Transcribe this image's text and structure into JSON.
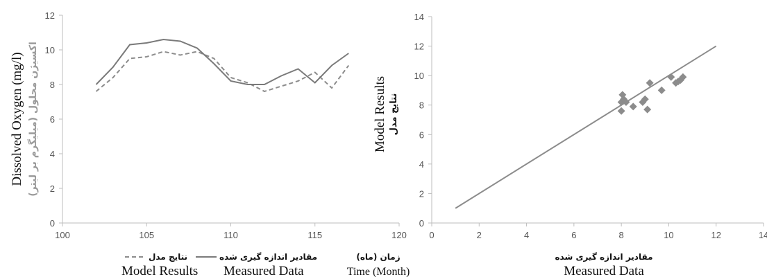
{
  "chart_data": [
    {
      "type": "line",
      "title": "",
      "ylabel": "Dissolved Oxygen (mg/l)",
      "ylabel_fa": "اکسیژن محلول (میلیگرم بر لیتر)",
      "xlabel": "Time (Month)",
      "xlabel_fa": "زمان (ماه)",
      "xlim": [
        100,
        120
      ],
      "ylim": [
        0,
        12
      ],
      "xticks": [
        100,
        105,
        110,
        115,
        120
      ],
      "yticks": [
        0,
        2,
        4,
        6,
        8,
        10,
        12
      ],
      "grid": false,
      "legend_position": "bottom",
      "x": [
        102,
        103,
        104,
        105,
        106,
        107,
        108,
        109,
        110,
        111,
        112,
        113,
        114,
        115,
        116,
        117
      ],
      "series": [
        {
          "name": "Model Results",
          "name_fa": "نتایج مدل",
          "style": "dashed",
          "color": "#8c8c8c",
          "values": [
            7.6,
            8.4,
            9.5,
            9.6,
            9.9,
            9.7,
            9.9,
            9.5,
            8.4,
            8.1,
            7.6,
            7.9,
            8.2,
            8.7,
            7.8,
            9.1
          ]
        },
        {
          "name": "Measured Data",
          "name_fa": "مقادیر اندازه گیری شده",
          "style": "solid",
          "color": "#7a7a7a",
          "values": [
            8.0,
            9.0,
            10.3,
            10.4,
            10.6,
            10.5,
            10.1,
            9.2,
            8.2,
            8.0,
            8.0,
            8.5,
            8.9,
            8.1,
            9.1,
            9.8
          ]
        }
      ]
    },
    {
      "type": "scatter",
      "title": "",
      "xlabel": "Measured Data",
      "xlabel_fa": "مقادیر اندازه گیری شده",
      "ylabel": "Model Results",
      "ylabel_fa": "نتایج مدل",
      "xlim": [
        0,
        14
      ],
      "ylim": [
        0,
        14
      ],
      "xticks": [
        0,
        2,
        4,
        6,
        8,
        10,
        12,
        14
      ],
      "yticks": [
        0,
        2,
        4,
        6,
        8,
        10,
        12,
        14
      ],
      "grid": false,
      "marker": "diamond",
      "marker_color": "#8c8c8c",
      "points": [
        {
          "x": 8.0,
          "y": 7.6
        },
        {
          "x": 8.0,
          "y": 8.2
        },
        {
          "x": 8.05,
          "y": 8.7
        },
        {
          "x": 8.1,
          "y": 8.4
        },
        {
          "x": 8.2,
          "y": 8.2
        },
        {
          "x": 8.5,
          "y": 7.9
        },
        {
          "x": 8.9,
          "y": 8.2
        },
        {
          "x": 9.0,
          "y": 8.4
        },
        {
          "x": 9.1,
          "y": 7.7
        },
        {
          "x": 9.2,
          "y": 9.5
        },
        {
          "x": 9.7,
          "y": 9.0
        },
        {
          "x": 10.1,
          "y": 9.9
        },
        {
          "x": 10.3,
          "y": 9.5
        },
        {
          "x": 10.4,
          "y": 9.6
        },
        {
          "x": 10.5,
          "y": 9.7
        },
        {
          "x": 10.6,
          "y": 9.9
        }
      ],
      "reference_line": {
        "x": [
          1,
          12
        ],
        "y": [
          1,
          12
        ],
        "color": "#8c8c8c"
      }
    }
  ]
}
